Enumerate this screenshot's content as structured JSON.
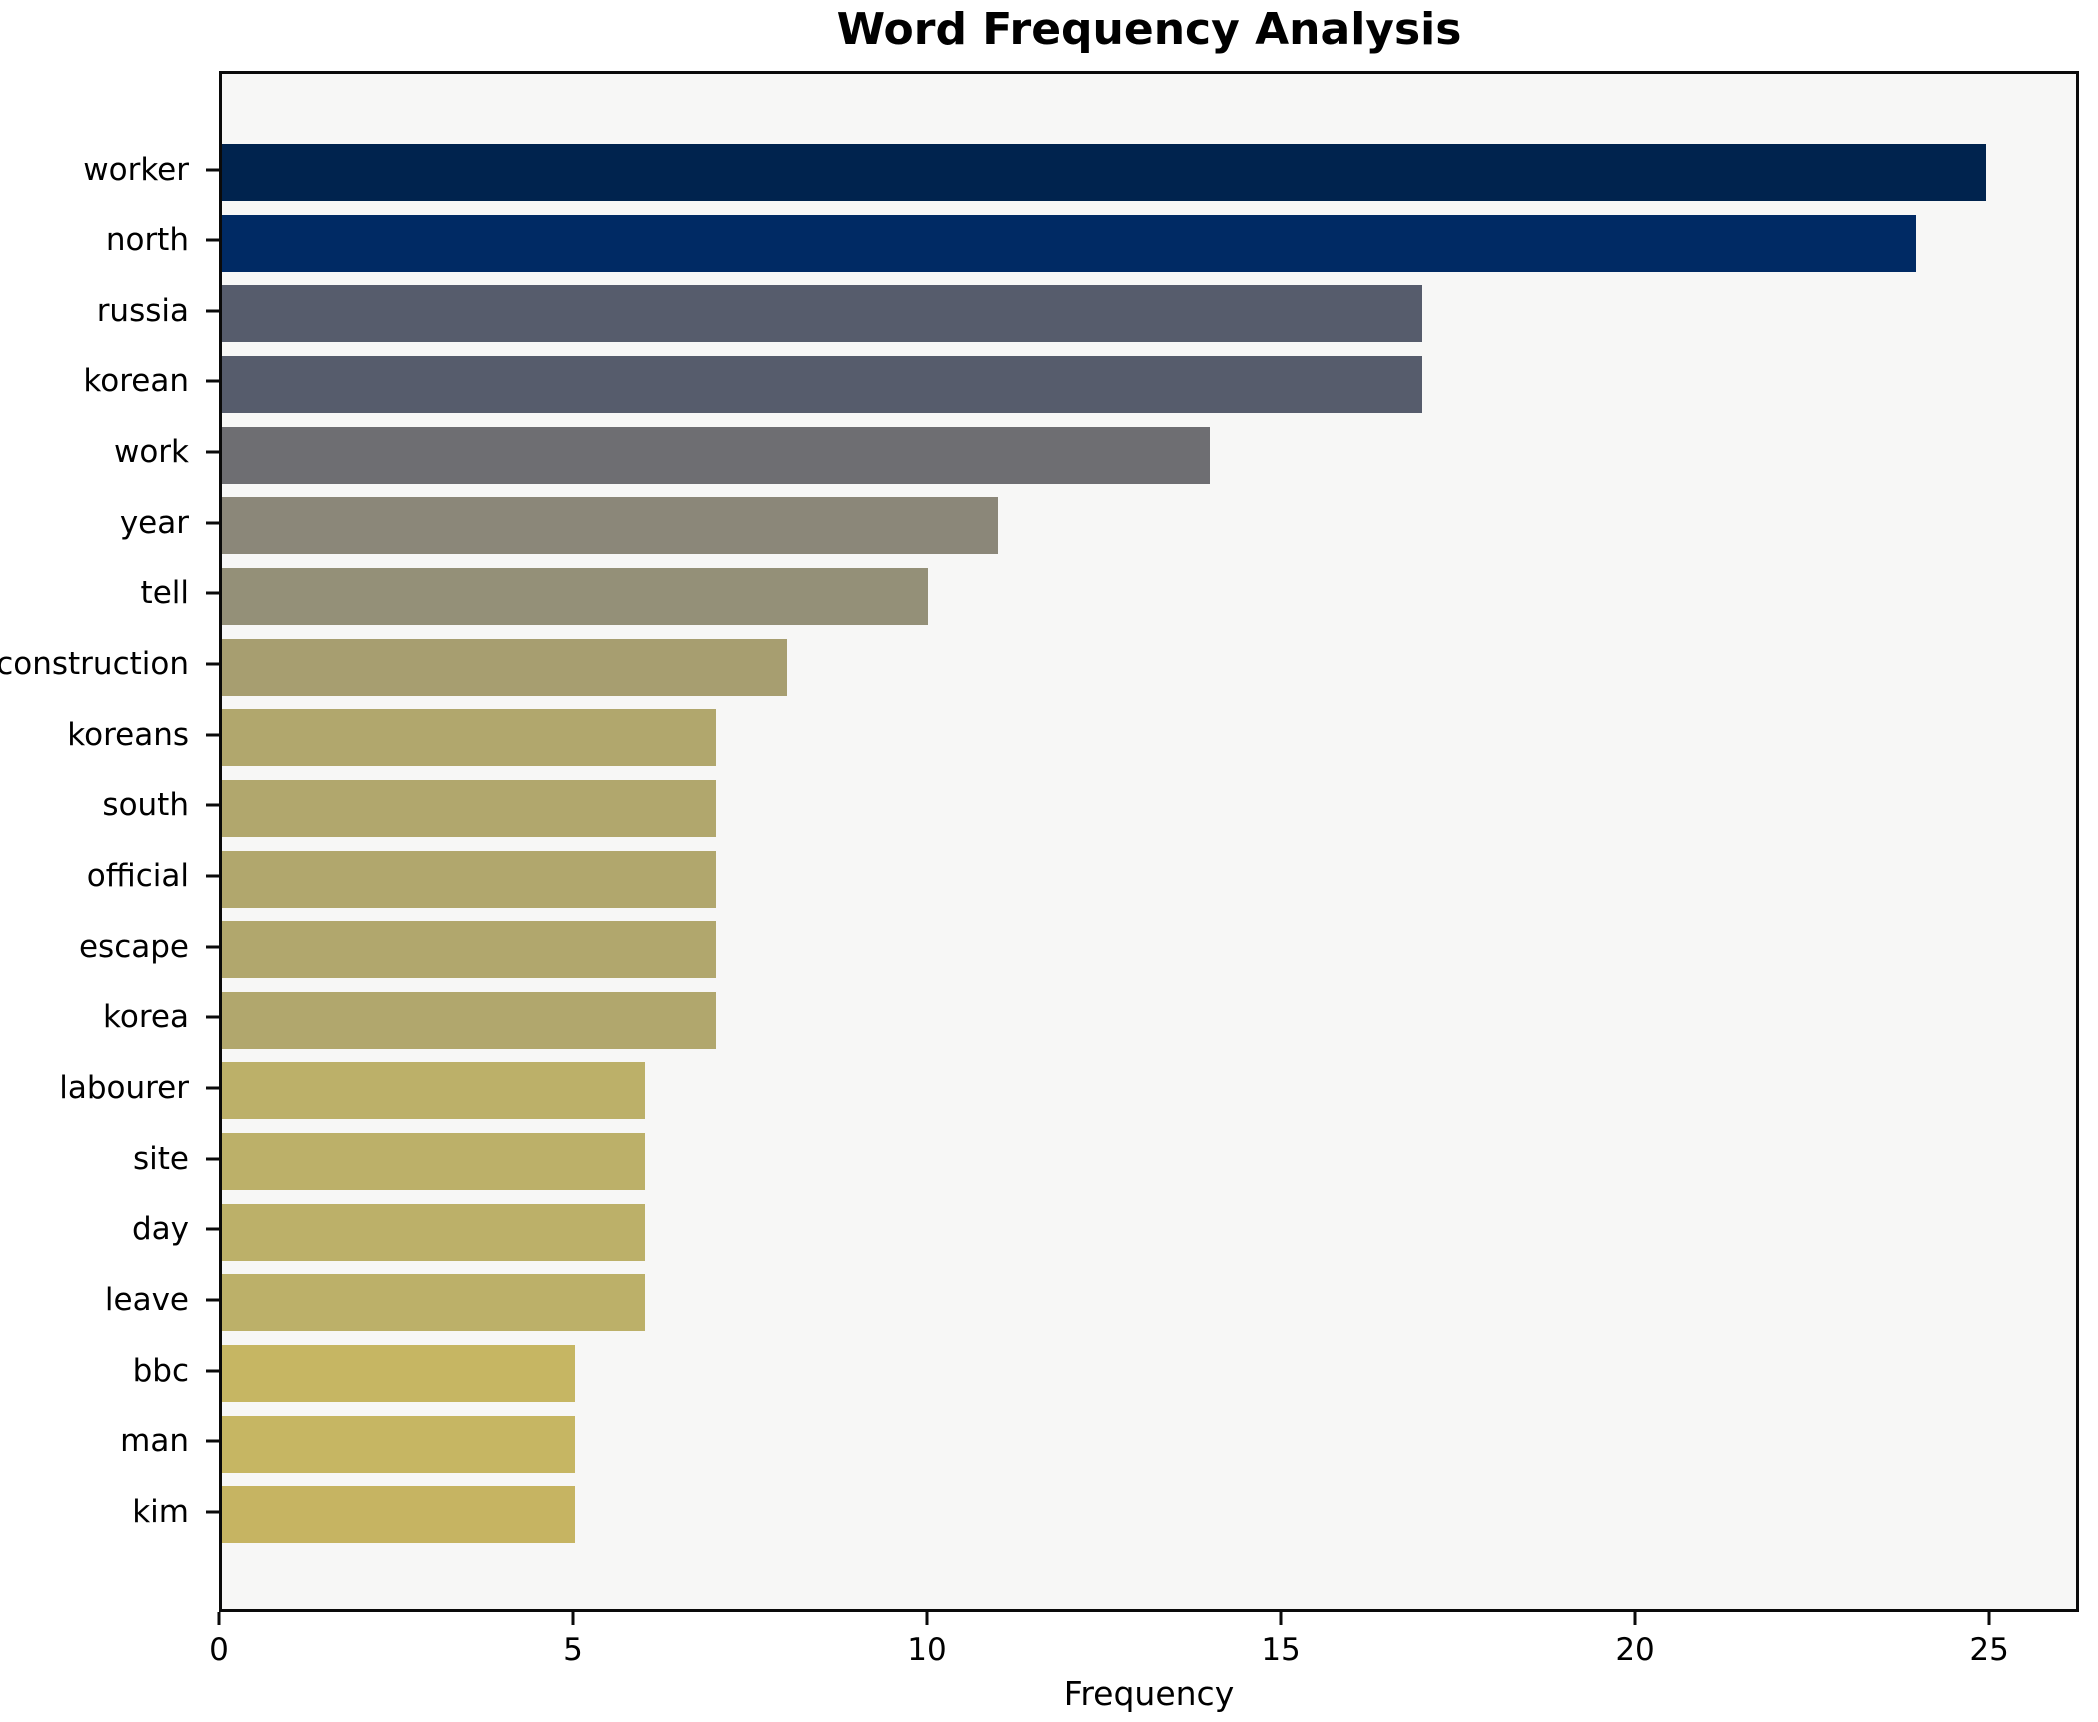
{
  "chart_data": {
    "type": "bar",
    "orientation": "horizontal",
    "title": "Word Frequency Analysis",
    "xlabel": "Frequency",
    "ylabel": "",
    "categories": [
      "worker",
      "north",
      "russia",
      "korean",
      "work",
      "year",
      "tell",
      "construction",
      "koreans",
      "south",
      "official",
      "escape",
      "korea",
      "labourer",
      "site",
      "day",
      "leave",
      "bbc",
      "man",
      "kim"
    ],
    "values": [
      25,
      24,
      17,
      17,
      14,
      11,
      10,
      8,
      7,
      7,
      7,
      7,
      7,
      6,
      6,
      6,
      6,
      5,
      5,
      5
    ],
    "bar_colors": [
      "#00234E",
      "#002A64",
      "#565C6C",
      "#565C6C",
      "#6E6E72",
      "#8B8779",
      "#949078",
      "#A79E70",
      "#B1A76D",
      "#B1A76D",
      "#B1A76D",
      "#B1A76D",
      "#B1A76D",
      "#BCB069",
      "#BCB069",
      "#BCB069",
      "#BCB069",
      "#C6B663",
      "#C6B663",
      "#C6B462"
    ],
    "x_ticks": [
      0,
      5,
      10,
      15,
      20,
      25
    ],
    "xlim": [
      0,
      26.27
    ],
    "grid": false,
    "legend": "none",
    "plot_background": "#f7f7f6",
    "figure_background": "#ffffff",
    "spine_color": "#0a0a0a"
  }
}
